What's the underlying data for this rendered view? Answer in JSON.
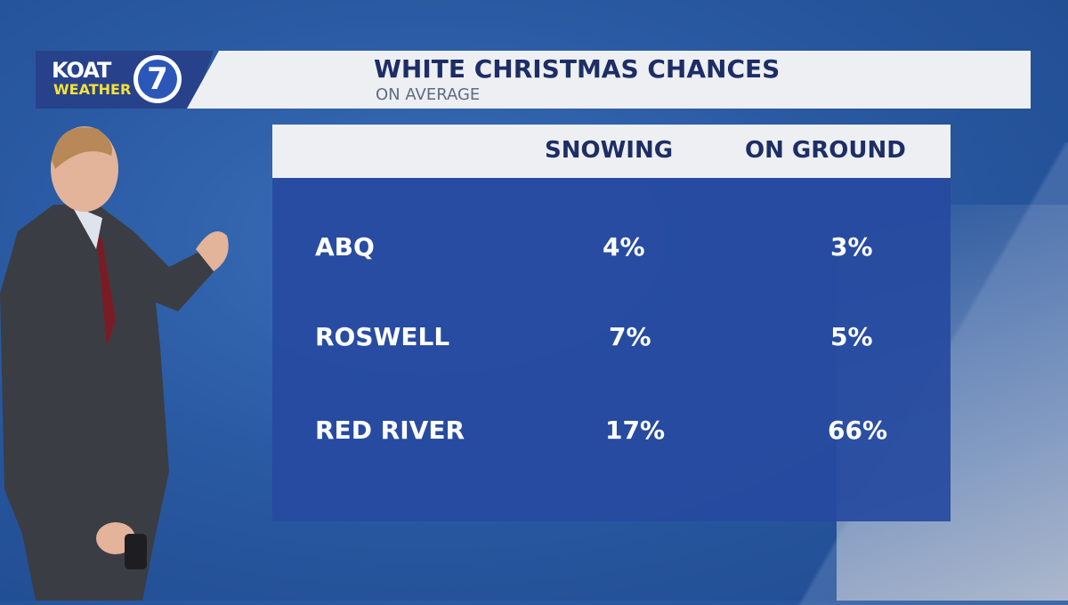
{
  "header": {
    "logo_top": "KOAT",
    "logo_bottom": "WEATHER",
    "logo_number": "7",
    "title": "WHITE CHRISTMAS CHANCES",
    "subtitle": "ON AVERAGE"
  },
  "colors": {
    "panel": "#264aa0",
    "header_bg": "#eeeff2",
    "header_text": "#1d2e66",
    "logo_yellow": "#f4e13a"
  },
  "chart_data": {
    "type": "table",
    "title": "WHITE CHRISTMAS CHANCES",
    "subtitle": "ON AVERAGE",
    "columns": [
      "SNOWING",
      "ON GROUND"
    ],
    "rows": [
      {
        "label": "ABQ",
        "values": [
          "4%",
          "3%"
        ]
      },
      {
        "label": "ROSWELL",
        "values": [
          "7%",
          "5%"
        ]
      },
      {
        "label": "RED RIVER",
        "values": [
          "17%",
          "66%"
        ]
      }
    ]
  }
}
